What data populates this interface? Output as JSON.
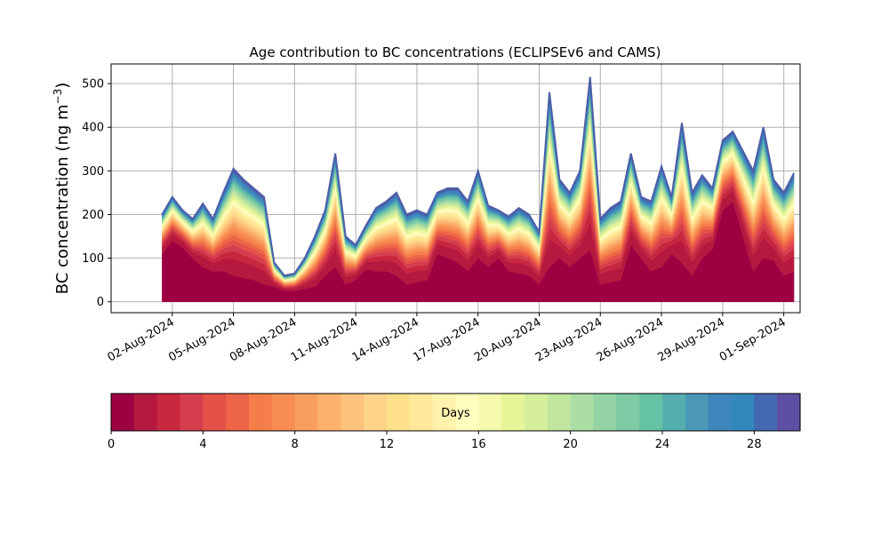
{
  "chart_data": {
    "type": "area",
    "title": "Age contribution to BC concentrations (ECLIPSEv6 and CAMS)",
    "ylabel_main": "BC concentration (ng m",
    "ylabel_sup": "−3",
    "ylabel_close": ")",
    "ylim": [
      -25,
      545
    ],
    "yticks": [
      0,
      100,
      200,
      300,
      400,
      500
    ],
    "ytick_labels": [
      "0",
      "100",
      "200",
      "300",
      "400",
      "500"
    ],
    "xlim": [
      -1.0,
      32.8
    ],
    "x_start_date": "2024-07-31",
    "xticks": [
      2,
      5,
      8,
      11,
      14,
      17,
      20,
      23,
      26,
      29,
      32
    ],
    "xtick_labels": [
      "02-Aug-2024",
      "05-Aug-2024",
      "08-Aug-2024",
      "11-Aug-2024",
      "14-Aug-2024",
      "17-Aug-2024",
      "20-Aug-2024",
      "23-Aug-2024",
      "26-Aug-2024",
      "29-Aug-2024",
      "01-Sep-2024"
    ],
    "grid": true,
    "series_count": 30,
    "x": [
      1.5,
      2.0,
      2.5,
      3.0,
      3.5,
      4.0,
      4.5,
      5.0,
      5.5,
      6.0,
      6.5,
      7.0,
      7.5,
      8.0,
      8.5,
      9.0,
      9.5,
      10.0,
      10.5,
      11.0,
      11.5,
      12.0,
      12.5,
      13.0,
      13.5,
      14.0,
      14.5,
      15.0,
      15.5,
      16.0,
      16.5,
      17.0,
      17.5,
      18.0,
      18.5,
      19.0,
      19.5,
      20.0,
      20.5,
      21.0,
      21.5,
      22.0,
      22.5,
      23.0,
      23.5,
      24.0,
      24.5,
      25.0,
      25.5,
      26.0,
      26.5,
      27.0,
      27.5,
      28.0,
      28.5,
      29.0,
      29.5,
      30.0,
      30.5,
      31.0,
      31.5,
      32.0,
      32.5
    ],
    "total": [
      200,
      240,
      210,
      190,
      225,
      190,
      250,
      305,
      280,
      260,
      240,
      90,
      60,
      65,
      100,
      150,
      210,
      340,
      150,
      130,
      175,
      215,
      230,
      250,
      200,
      210,
      200,
      250,
      260,
      260,
      230,
      300,
      220,
      210,
      195,
      215,
      200,
      160,
      480,
      280,
      250,
      300,
      515,
      190,
      215,
      230,
      340,
      240,
      230,
      310,
      240,
      410,
      250,
      290,
      260,
      370,
      390,
      345,
      300,
      400,
      280,
      250,
      295
    ],
    "fresh": [
      110,
      140,
      125,
      100,
      80,
      70,
      70,
      60,
      55,
      50,
      40,
      35,
      25,
      25,
      30,
      35,
      60,
      80,
      40,
      50,
      75,
      70,
      70,
      60,
      40,
      45,
      50,
      110,
      100,
      90,
      70,
      100,
      80,
      100,
      70,
      65,
      60,
      40,
      80,
      100,
      80,
      100,
      120,
      40,
      45,
      50,
      130,
      100,
      70,
      80,
      110,
      90,
      60,
      100,
      120,
      210,
      230,
      150,
      70,
      100,
      95,
      60,
      70
    ],
    "colorbar": {
      "label": "Days",
      "min": 0,
      "max": 30,
      "ticks": [
        0,
        4,
        8,
        12,
        16,
        20,
        24,
        28
      ],
      "tick_labels": [
        "0",
        "4",
        "8",
        "12",
        "16",
        "20",
        "24",
        "28"
      ],
      "colors": [
        "#9e0142",
        "#b5193f",
        "#c7283f",
        "#d53e4f",
        "#e45149",
        "#ec6547",
        "#f47d4a",
        "#f88d52",
        "#f99f5e",
        "#fcb26c",
        "#fdc27b",
        "#fdd38a",
        "#fee08b",
        "#fee899",
        "#fff2ac",
        "#fffebe",
        "#f4f9ac",
        "#e6f598",
        "#d5ee9c",
        "#c0e6a0",
        "#abdda4",
        "#94d3a4",
        "#7dcaa4",
        "#66c2a5",
        "#55aeae",
        "#4a98b6",
        "#3f86bc",
        "#3288bd",
        "#4569b0",
        "#5e4fa2"
      ]
    }
  }
}
